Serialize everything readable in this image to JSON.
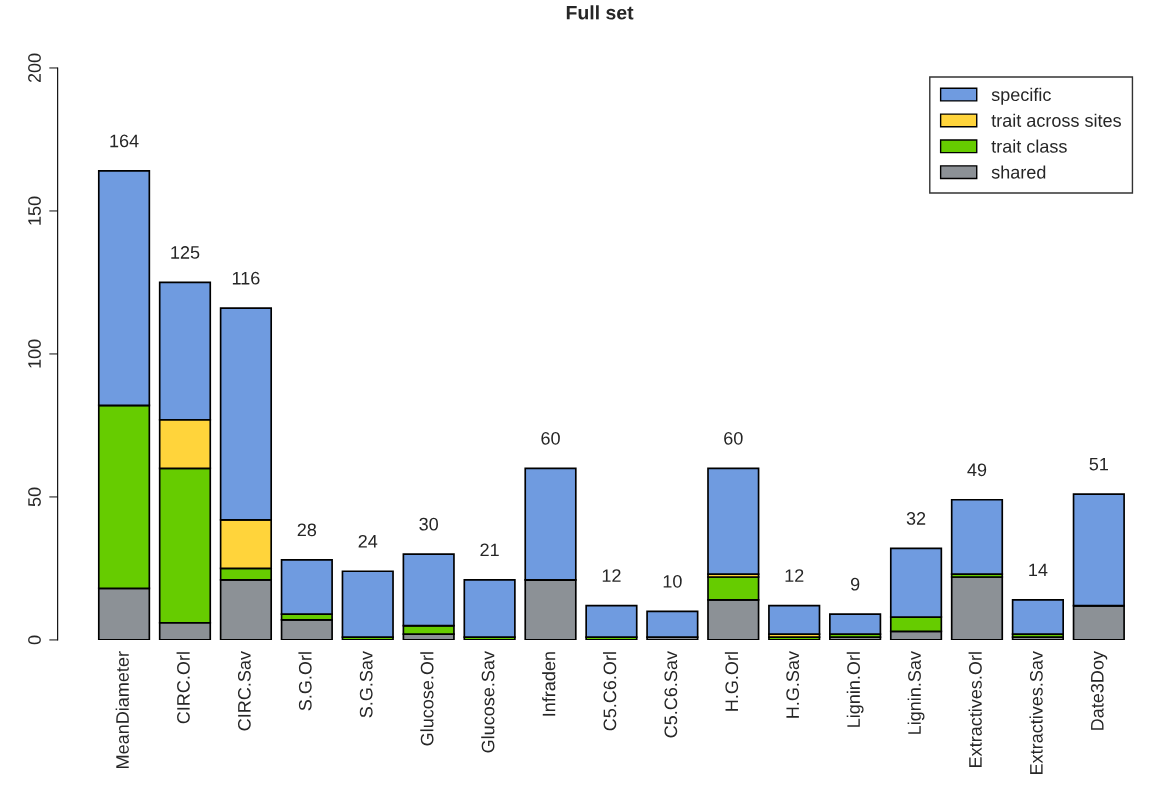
{
  "chart_data": {
    "type": "bar",
    "title": "Full set",
    "stacked": true,
    "categories": [
      "MeanDiameter",
      "CIRC.Orl",
      "CIRC.Sav",
      "S.G.Orl",
      "S.G.Sav",
      "Glucose.Orl",
      "Glucose.Sav",
      "Infraden",
      "C5.C6.Orl",
      "C5.C6.Sav",
      "H.G.Orl",
      "H.G.Sav",
      "Lignin.Orl",
      "Lignin.Sav",
      "Extractives.Orl",
      "Extractives.Sav",
      "Date3Doy"
    ],
    "series": [
      {
        "name": "shared",
        "color": "#8c9196",
        "values": [
          18,
          6,
          21,
          7,
          0,
          2,
          0,
          21,
          0,
          1,
          14,
          0,
          1,
          3,
          22,
          1,
          12
        ]
      },
      {
        "name": "trait class",
        "color": "#66cc00",
        "values": [
          64,
          54,
          4,
          2,
          1,
          3,
          1,
          0,
          1,
          0,
          8,
          1,
          1,
          5,
          1,
          1,
          0
        ]
      },
      {
        "name": "trait across sites",
        "color": "#ffd43b",
        "values": [
          0,
          17,
          17,
          0,
          0,
          0,
          0,
          0,
          0,
          0,
          1,
          1,
          0,
          0,
          0,
          0,
          0
        ]
      },
      {
        "name": "specific",
        "color": "#6f9be0",
        "values": [
          82,
          48,
          74,
          19,
          23,
          25,
          20,
          39,
          11,
          9,
          37,
          10,
          7,
          24,
          26,
          12,
          39
        ]
      }
    ],
    "totals": [
      "164",
      "125",
      "116",
      "28",
      "24",
      "30",
      "21",
      "60",
      "12",
      "10",
      "60",
      "12",
      "9",
      "32",
      "49",
      "14",
      "51"
    ],
    "ylim": [
      0,
      200
    ],
    "yticks": [
      0,
      50,
      100,
      150,
      200
    ],
    "grid": false,
    "legend": "top right"
  }
}
